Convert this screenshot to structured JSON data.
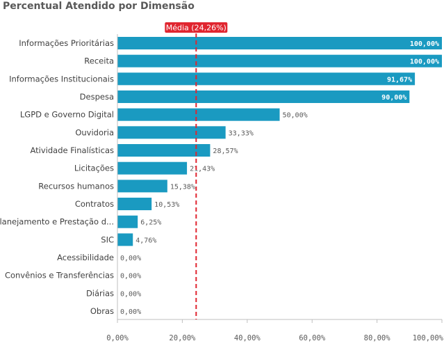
{
  "chart_data": {
    "type": "bar",
    "orientation": "horizontal",
    "title": "Percentual Atendido por Dimensão",
    "categories": [
      "Informações Prioritárias",
      "Receita",
      "Informações Institucionais",
      "Despesa",
      "LGPD e Governo Digital",
      "Ouvidoria",
      "Atividade Finalísticas",
      "Licitações",
      "Recursos humanos",
      "Contratos",
      "Planejamento e Prestação d...",
      "SIC",
      "Acessibilidade",
      "Convênios e Transferências",
      "Diárias",
      "Obras"
    ],
    "values": [
      100.0,
      100.0,
      91.67,
      90.0,
      50.0,
      33.33,
      28.57,
      21.43,
      15.38,
      10.53,
      6.25,
      4.76,
      0.0,
      0.0,
      0.0,
      0.0
    ],
    "value_labels": [
      "100,00%",
      "100,00%",
      "91,67%",
      "90,00%",
      "50,00%",
      "33,33%",
      "28,57%",
      "21,43%",
      "15,38%",
      "10,53%",
      "6,25%",
      "4,76%",
      "0,00%",
      "0,00%",
      "0,00%",
      "0,00%"
    ],
    "xlim": [
      0,
      100
    ],
    "x_ticks": [
      0,
      20,
      40,
      60,
      80,
      100
    ],
    "x_tick_labels": [
      "0,00%",
      "20,00%",
      "40,00%",
      "60,00%",
      "80,00%",
      "100,00%"
    ],
    "grid": false,
    "bar_color": "#1a9ac1",
    "reference_line": {
      "label": "Média (24,26%)",
      "value": 24.26,
      "color": "#e0252f"
    }
  }
}
